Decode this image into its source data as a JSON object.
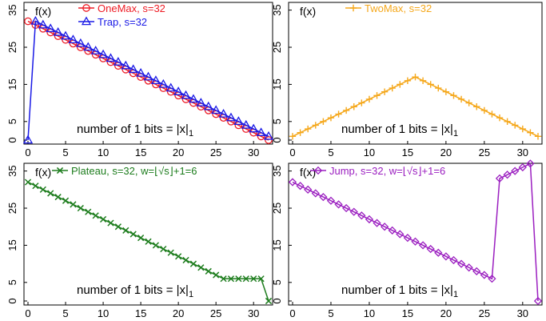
{
  "chart_data": [
    {
      "type": "line",
      "ylabel": "f(x)",
      "xlabel": "number of 1 bits = |x|",
      "xlabel_sub": "1",
      "xlim": [
        0,
        32
      ],
      "ylim": [
        0,
        36
      ],
      "xticks": [
        0,
        5,
        10,
        15,
        20,
        25,
        30
      ],
      "yticks": [
        0,
        5,
        15,
        25,
        35
      ],
      "legend_position": "top",
      "series": [
        {
          "name": "OneMax, s=32",
          "color": "#ee1c25",
          "marker": "circle",
          "x": [
            0,
            1,
            2,
            3,
            4,
            5,
            6,
            7,
            8,
            9,
            10,
            11,
            12,
            13,
            14,
            15,
            16,
            17,
            18,
            19,
            20,
            21,
            22,
            23,
            24,
            25,
            26,
            27,
            28,
            29,
            30,
            31,
            32
          ],
          "y": [
            32,
            31,
            30,
            29,
            28,
            27,
            26,
            25,
            24,
            23,
            22,
            21,
            20,
            19,
            18,
            17,
            16,
            15,
            14,
            13,
            12,
            11,
            10,
            9,
            8,
            7,
            6,
            5,
            4,
            3,
            2,
            1,
            0
          ]
        },
        {
          "name": "Trap, s=32",
          "color": "#1a1ae6",
          "marker": "triangle",
          "x": [
            0,
            1,
            2,
            3,
            4,
            5,
            6,
            7,
            8,
            9,
            10,
            11,
            12,
            13,
            14,
            15,
            16,
            17,
            18,
            19,
            20,
            21,
            22,
            23,
            24,
            25,
            26,
            27,
            28,
            29,
            30,
            31,
            32
          ],
          "y": [
            0,
            32,
            31,
            30,
            29,
            28,
            27,
            26,
            25,
            24,
            23,
            22,
            21,
            20,
            19,
            18,
            17,
            16,
            15,
            14,
            13,
            12,
            11,
            10,
            9,
            8,
            7,
            6,
            5,
            4,
            3,
            2,
            1
          ]
        }
      ]
    },
    {
      "type": "line",
      "ylabel": "f(x)",
      "xlabel": "number of 1 bits = |x|",
      "xlabel_sub": "1",
      "xlim": [
        0,
        32
      ],
      "ylim": [
        0,
        36
      ],
      "xticks": [
        0,
        5,
        10,
        15,
        20,
        25,
        30
      ],
      "yticks": [
        0,
        5,
        15,
        25,
        35
      ],
      "legend_position": "top-right",
      "series": [
        {
          "name": "TwoMax, s=32",
          "color": "#f5a81c",
          "marker": "plus",
          "x": [
            0,
            1,
            2,
            3,
            4,
            5,
            6,
            7,
            8,
            9,
            10,
            11,
            12,
            13,
            14,
            15,
            16,
            17,
            18,
            19,
            20,
            21,
            22,
            23,
            24,
            25,
            26,
            27,
            28,
            29,
            30,
            31,
            32
          ],
          "y": [
            1,
            2,
            3,
            4,
            5,
            6,
            7,
            8,
            9,
            10,
            11,
            12,
            13,
            14,
            15,
            16,
            17,
            16,
            15,
            14,
            13,
            12,
            11,
            10,
            9,
            8,
            7,
            6,
            5,
            4,
            3,
            2,
            1
          ]
        }
      ]
    },
    {
      "type": "line",
      "ylabel": "f(x)",
      "xlabel": "number of 1 bits = |x|",
      "xlabel_sub": "1",
      "xlim": [
        0,
        32
      ],
      "ylim": [
        0,
        36
      ],
      "xticks": [
        0,
        5,
        10,
        15,
        20,
        25,
        30
      ],
      "yticks": [
        0,
        5,
        15,
        25,
        35
      ],
      "legend_position": "top",
      "series": [
        {
          "name": "Plateau, s=32, w=⌊√s⌋+1=6",
          "color": "#1e7d1e",
          "marker": "cross",
          "x": [
            0,
            1,
            2,
            3,
            4,
            5,
            6,
            7,
            8,
            9,
            10,
            11,
            12,
            13,
            14,
            15,
            16,
            17,
            18,
            19,
            20,
            21,
            22,
            23,
            24,
            25,
            26,
            27,
            28,
            29,
            30,
            31,
            32
          ],
          "y": [
            32,
            31,
            30,
            29,
            28,
            27,
            26,
            25,
            24,
            23,
            22,
            21,
            20,
            19,
            18,
            17,
            16,
            15,
            14,
            13,
            12,
            11,
            10,
            9,
            8,
            7,
            6,
            6,
            6,
            6,
            6,
            6,
            0
          ]
        }
      ]
    },
    {
      "type": "line",
      "ylabel": "f(x)",
      "xlabel": "number of 1 bits = |x|",
      "xlabel_sub": "1",
      "xlim": [
        0,
        32
      ],
      "ylim": [
        0,
        36
      ],
      "xticks": [
        0,
        5,
        10,
        15,
        20,
        25,
        30
      ],
      "yticks": [
        0,
        5,
        15,
        25,
        35
      ],
      "legend_position": "top",
      "series": [
        {
          "name": "Jump, s=32, w=⌊√s⌋+1=6",
          "color": "#9b1fc0",
          "marker": "diamond",
          "x": [
            0,
            1,
            2,
            3,
            4,
            5,
            6,
            7,
            8,
            9,
            10,
            11,
            12,
            13,
            14,
            15,
            16,
            17,
            18,
            19,
            20,
            21,
            22,
            23,
            24,
            25,
            26,
            27,
            28,
            29,
            30,
            31,
            32
          ],
          "y": [
            32,
            31,
            30,
            29,
            28,
            27,
            26,
            25,
            24,
            23,
            22,
            21,
            20,
            19,
            18,
            17,
            16,
            15,
            14,
            13,
            12,
            11,
            10,
            9,
            8,
            7,
            6,
            33,
            34,
            35,
            36,
            37,
            0
          ]
        }
      ]
    }
  ]
}
